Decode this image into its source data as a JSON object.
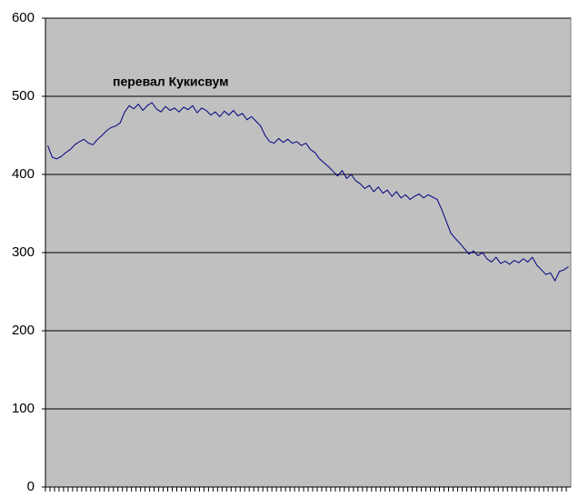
{
  "chart_data": {
    "type": "line",
    "annotation": "перевал Кукисвум",
    "categories": [
      null,
      null,
      null,
      null,
      null,
      null,
      null,
      null,
      null,
      null,
      null,
      null,
      null,
      null,
      null,
      null,
      null,
      null,
      null,
      null,
      null,
      null,
      null,
      null,
      null,
      null,
      null,
      null,
      null,
      null,
      null,
      null,
      null,
      null,
      null,
      null,
      null,
      null,
      null,
      null,
      null,
      null,
      null,
      null,
      null,
      null,
      null,
      null,
      null,
      null,
      null,
      null,
      null,
      null,
      null,
      null,
      null,
      null,
      null,
      null,
      null,
      null,
      null,
      null,
      null,
      null,
      null,
      null,
      null,
      null,
      null,
      null,
      null,
      null,
      null,
      null,
      null,
      null,
      null,
      null,
      null,
      null,
      null,
      null,
      null,
      null,
      null,
      null,
      null,
      null,
      null,
      null,
      null,
      null,
      null,
      null,
      null,
      null,
      null,
      null,
      null,
      null,
      null,
      null,
      null,
      null,
      null,
      null,
      null,
      null,
      null,
      null,
      null,
      null,
      null,
      null
    ],
    "values": [
      437,
      422,
      420,
      423,
      428,
      432,
      438,
      442,
      445,
      440,
      438,
      445,
      450,
      456,
      460,
      462,
      466,
      480,
      488,
      484,
      490,
      482,
      488,
      492,
      484,
      480,
      487,
      482,
      485,
      480,
      486,
      483,
      488,
      479,
      485,
      482,
      476,
      480,
      474,
      481,
      476,
      482,
      475,
      478,
      470,
      474,
      468,
      462,
      450,
      442,
      440,
      446,
      441,
      445,
      440,
      442,
      437,
      440,
      432,
      428,
      420,
      415,
      410,
      404,
      398,
      405,
      395,
      400,
      392,
      388,
      382,
      386,
      378,
      384,
      376,
      380,
      372,
      378,
      370,
      374,
      368,
      372,
      375,
      370,
      374,
      371,
      368,
      355,
      340,
      325,
      318,
      312,
      305,
      298,
      302,
      296,
      300,
      292,
      288,
      294,
      286,
      289,
      285,
      290,
      287,
      292,
      288,
      294,
      284,
      278,
      272,
      274,
      264,
      276,
      278,
      282
    ],
    "color": "#000080",
    "background": "#c0c0c0",
    "ylim": [
      0,
      600
    ],
    "yticks": [
      0,
      100,
      200,
      300,
      400,
      500,
      600
    ],
    "grid": true
  }
}
